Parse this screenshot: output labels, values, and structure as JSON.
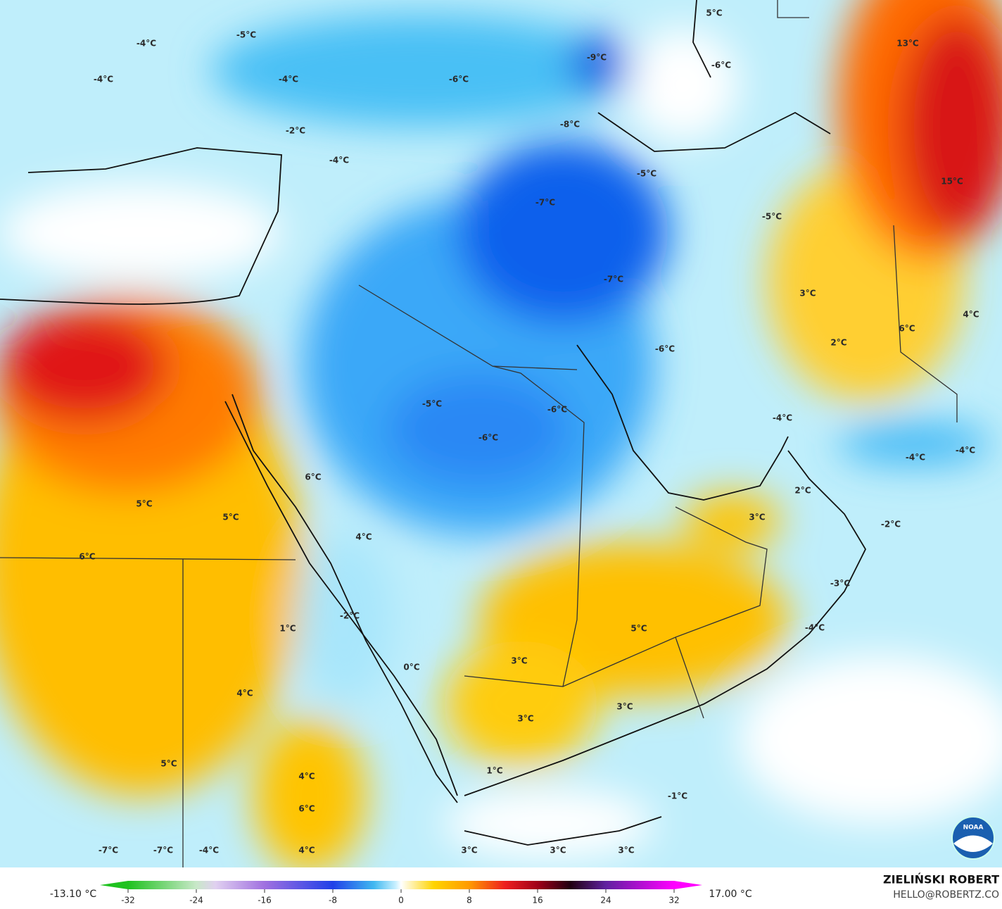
{
  "map": {
    "labels": [
      "5°C",
      "13°C",
      "-9°C",
      "-5°C",
      "-4°C",
      "-4°C",
      "-4°C",
      "-6°C",
      "-6°C",
      "-8°C",
      "-2°C",
      "-4°C",
      "-5°C",
      "15°C",
      "-7°C",
      "-5°C",
      "-7°C",
      "3°C",
      "4°C",
      "6°C",
      "2°C",
      "-6°C",
      "-5°C",
      "-6°C",
      "-6°C",
      "-4°C",
      "-4°C",
      "-4°C",
      "6°C",
      "2°C",
      "5°C",
      "5°C",
      "3°C",
      "-2°C",
      "4°C",
      "6°C",
      "-3°C",
      "-2°C",
      "1°C",
      "5°C",
      "-4°C",
      "3°C",
      "0°C",
      "4°C",
      "3°C",
      "3°C",
      "5°C",
      "1°C",
      "4°C",
      "-1°C",
      "6°C",
      "-7°C",
      "-7°C",
      "-4°C",
      "4°C",
      "3°C",
      "3°C",
      "3°C"
    ],
    "legend": {
      "min_label": "-13.10 °C",
      "max_label": "17.00 °C",
      "ticks": [
        -32,
        -24,
        -16,
        -8,
        0,
        8,
        16,
        24,
        32
      ]
    },
    "credit": {
      "author": "ZIELIŃSKI ROBERT",
      "contact": "HELLO@ROBERTZ.CO"
    },
    "logo": "NOAA"
  }
}
